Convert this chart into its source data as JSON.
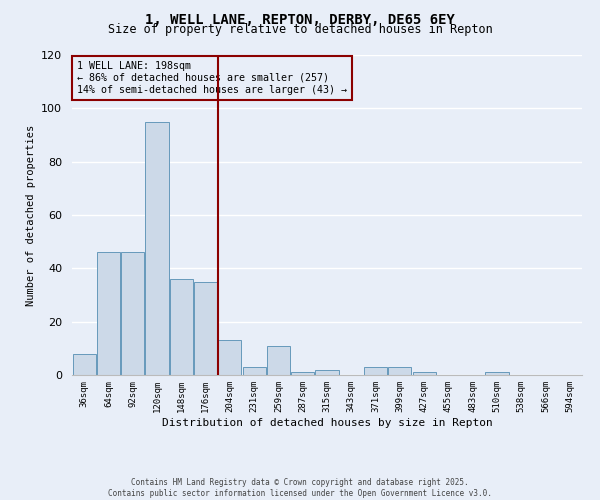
{
  "title": "1, WELL LANE, REPTON, DERBY, DE65 6EY",
  "subtitle": "Size of property relative to detached houses in Repton",
  "xlabel": "Distribution of detached houses by size in Repton",
  "ylabel": "Number of detached properties",
  "categories": [
    "36sqm",
    "64sqm",
    "92sqm",
    "120sqm",
    "148sqm",
    "176sqm",
    "204sqm",
    "231sqm",
    "259sqm",
    "287sqm",
    "315sqm",
    "343sqm",
    "371sqm",
    "399sqm",
    "427sqm",
    "455sqm",
    "483sqm",
    "510sqm",
    "538sqm",
    "566sqm",
    "594sqm"
  ],
  "values": [
    8,
    46,
    46,
    95,
    36,
    35,
    13,
    3,
    11,
    1,
    2,
    0,
    3,
    3,
    1,
    0,
    0,
    1,
    0,
    0,
    0
  ],
  "bar_color": "#ccd9e8",
  "bar_edge_color": "#6699bb",
  "vline_x_index": 6,
  "vline_color": "#8b0000",
  "annotation_title": "1 WELL LANE: 198sqm",
  "annotation_line1": "← 86% of detached houses are smaller (257)",
  "annotation_line2": "14% of semi-detached houses are larger (43) →",
  "ylim": [
    0,
    120
  ],
  "yticks": [
    0,
    20,
    40,
    60,
    80,
    100,
    120
  ],
  "bg_color": "#e8eef8",
  "grid_color": "#ffffff",
  "footer": "Contains HM Land Registry data © Crown copyright and database right 2025.\nContains public sector information licensed under the Open Government Licence v3.0."
}
